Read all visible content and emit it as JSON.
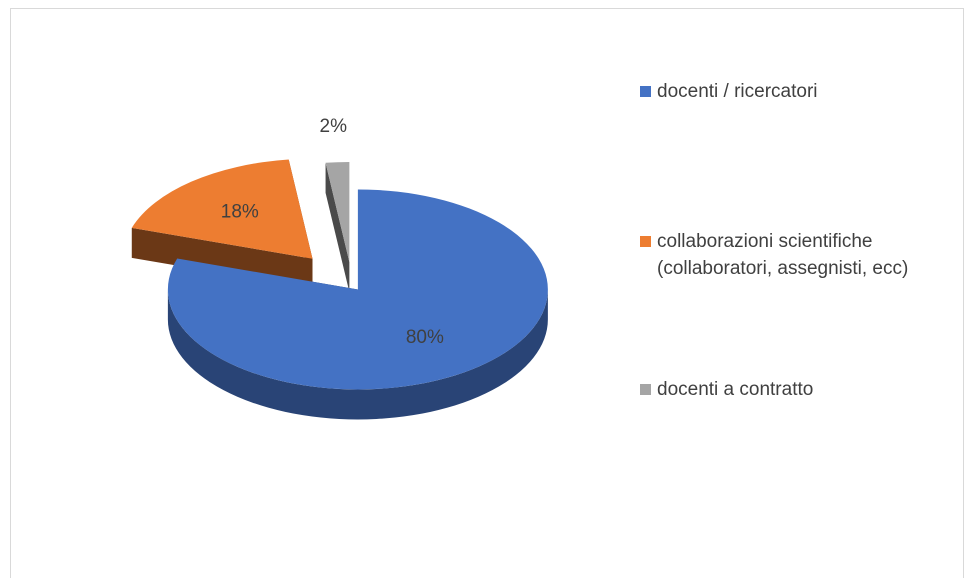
{
  "chart_data": {
    "type": "pie",
    "categories": [
      "docenti / ricercatori",
      "collaborazioni scientifiche (collaboratori, assegnisti, ecc)",
      "docenti a contratto"
    ],
    "values": [
      80,
      18,
      2
    ],
    "value_labels": [
      "80%",
      "18%",
      "2%"
    ],
    "colors": [
      "#4472c4",
      "#ed7d31",
      "#a5a5a5"
    ],
    "legend": "right"
  }
}
